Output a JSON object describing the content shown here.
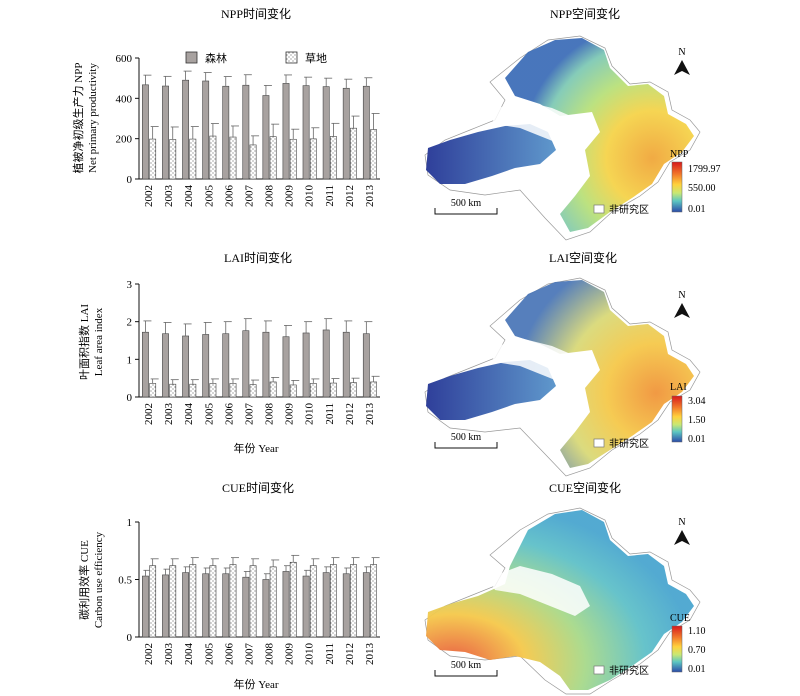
{
  "charts": [
    {
      "title": "NPP时间变化",
      "ylabel_cn": "植被净初级生产力 NPP",
      "ylabel_en": "Net primary productivity",
      "xlabel": "",
      "legend": [
        "森林",
        "草地"
      ]
    },
    {
      "title": "LAI时间变化",
      "ylabel_cn": "叶面积指数 LAI",
      "ylabel_en": "Leaf area index",
      "xlabel": "年份 Year"
    },
    {
      "title": "CUE时间变化",
      "ylabel_cn": "碳利用效率 CUE",
      "ylabel_en": "Carbon use efficiency",
      "xlabel": "年份 Year"
    }
  ],
  "maps": [
    {
      "title": "NPP空间变化",
      "legend_title": "NPP",
      "legend_values": [
        "1799.97",
        "550.00",
        "0.01"
      ],
      "scale": "500 km",
      "north": "N",
      "nodata": "非研究区"
    },
    {
      "title": "LAI空间变化",
      "legend_title": "LAI",
      "legend_values": [
        "3.04",
        "1.50",
        "0.01"
      ],
      "scale": "500 km",
      "north": "N",
      "nodata": "非研究区"
    },
    {
      "title": "CUE空间变化",
      "legend_title": "CUE",
      "legend_values": [
        "1.10",
        "0.70",
        "0.01"
      ],
      "scale": "500 km",
      "north": "N",
      "nodata": "非研究区"
    }
  ],
  "colors": {
    "forest": "#a8a2a0",
    "grassland": "#ffffff",
    "ramp_high": "#d7191c",
    "ramp_mid": "#ffd23c",
    "ramp_low": "#2b4ba8"
  },
  "chart_data": [
    {
      "type": "bar",
      "title": "NPP时间变化",
      "categories": [
        "2002",
        "2003",
        "2004",
        "2005",
        "2006",
        "2007",
        "2008",
        "2009",
        "2010",
        "2011",
        "2012",
        "2013"
      ],
      "ylim": [
        0,
        600
      ],
      "yticks": [
        0,
        200,
        400,
        600
      ],
      "ylabel": "植被净初级生产力 NPP Net primary productivity",
      "series": [
        {
          "name": "森林",
          "values": [
            467,
            461,
            490,
            486,
            460,
            465,
            414,
            474,
            463,
            458,
            450,
            460
          ],
          "errors": [
            48,
            48,
            45,
            42,
            48,
            52,
            50,
            42,
            42,
            42,
            45,
            42
          ]
        },
        {
          "name": "草地",
          "values": [
            198,
            196,
            198,
            213,
            208,
            169,
            210,
            197,
            199,
            211,
            252,
            245
          ],
          "errors": [
            62,
            62,
            62,
            62,
            55,
            45,
            62,
            50,
            55,
            65,
            60,
            80
          ]
        }
      ]
    },
    {
      "type": "bar",
      "title": "LAI时间变化",
      "categories": [
        "2002",
        "2003",
        "2004",
        "2005",
        "2006",
        "2007",
        "2008",
        "2009",
        "2010",
        "2011",
        "2012",
        "2013"
      ],
      "ylim": [
        0,
        3
      ],
      "yticks": [
        0,
        1,
        2,
        3
      ],
      "ylabel": "叶面积指数 LAI Leaf area index",
      "xlabel": "年份 Year",
      "series": [
        {
          "name": "森林",
          "values": [
            1.72,
            1.68,
            1.62,
            1.66,
            1.68,
            1.76,
            1.72,
            1.6,
            1.7,
            1.78,
            1.72,
            1.68
          ],
          "errors": [
            0.3,
            0.3,
            0.32,
            0.32,
            0.32,
            0.32,
            0.3,
            0.3,
            0.3,
            0.3,
            0.3,
            0.32
          ]
        },
        {
          "name": "草地",
          "values": [
            0.36,
            0.34,
            0.34,
            0.36,
            0.36,
            0.33,
            0.4,
            0.32,
            0.36,
            0.37,
            0.38,
            0.4
          ],
          "errors": [
            0.12,
            0.12,
            0.12,
            0.12,
            0.12,
            0.12,
            0.12,
            0.12,
            0.12,
            0.12,
            0.12,
            0.15
          ]
        }
      ]
    },
    {
      "type": "bar",
      "title": "CUE时间变化",
      "categories": [
        "2002",
        "2003",
        "2004",
        "2005",
        "2006",
        "2007",
        "2008",
        "2009",
        "2010",
        "2011",
        "2012",
        "2013"
      ],
      "ylim": [
        0,
        1.0
      ],
      "yticks": [
        0,
        0.5,
        1.0
      ],
      "ylabel": "碳利用效率 CUE Carbon use efficiency",
      "xlabel": "年份 Year",
      "series": [
        {
          "name": "森林",
          "values": [
            0.53,
            0.54,
            0.56,
            0.55,
            0.55,
            0.52,
            0.5,
            0.57,
            0.53,
            0.56,
            0.55,
            0.56
          ],
          "errors": [
            0.05,
            0.05,
            0.05,
            0.05,
            0.05,
            0.05,
            0.05,
            0.05,
            0.05,
            0.05,
            0.05,
            0.05
          ]
        },
        {
          "name": "草地",
          "values": [
            0.62,
            0.62,
            0.63,
            0.62,
            0.63,
            0.62,
            0.61,
            0.65,
            0.62,
            0.63,
            0.63,
            0.63
          ],
          "errors": [
            0.06,
            0.06,
            0.06,
            0.06,
            0.06,
            0.06,
            0.06,
            0.06,
            0.06,
            0.06,
            0.06,
            0.06
          ]
        }
      ]
    }
  ]
}
